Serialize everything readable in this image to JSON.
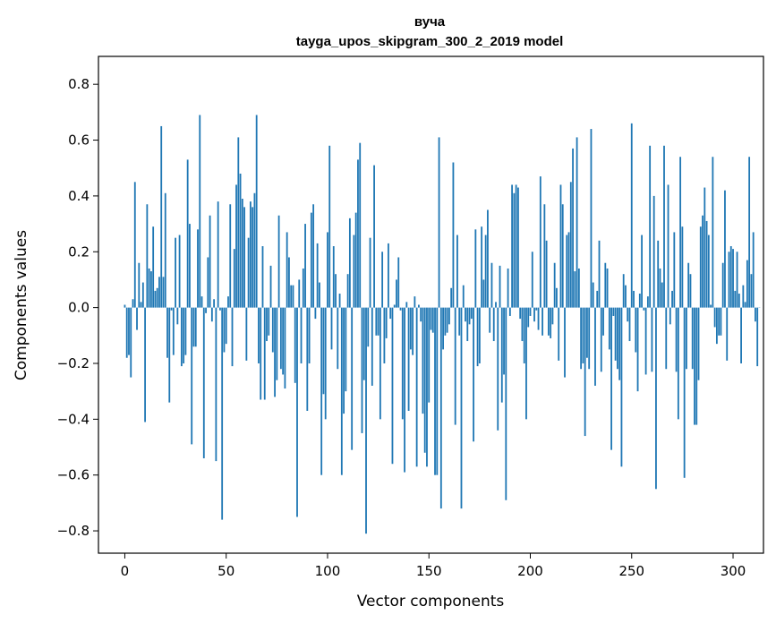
{
  "chart_data": {
    "type": "bar",
    "title": "вуча",
    "subtitle": "tayga_upos_skipgram_300_2_2019 model",
    "xlabel": "Vector components",
    "ylabel": "Components values",
    "xlim": [
      -13,
      315
    ],
    "ylim": [
      -0.88,
      0.9
    ],
    "xticks": [
      0,
      50,
      100,
      150,
      200,
      250,
      300
    ],
    "xtick_labels": [
      "0",
      "50",
      "100",
      "150",
      "200",
      "250",
      "300"
    ],
    "yticks": [
      -0.8,
      -0.6,
      -0.4,
      -0.2,
      0.0,
      0.2,
      0.4,
      0.6,
      0.8
    ],
    "ytick_labels": [
      "−0.8",
      "−0.6",
      "−0.4",
      "−0.2",
      "0.0",
      "0.2",
      "0.4",
      "0.6",
      "0.8"
    ],
    "bar_color": "#1f77b4",
    "grid": false,
    "values": [
      0.01,
      -0.18,
      -0.17,
      -0.25,
      0.03,
      0.45,
      -0.08,
      0.16,
      0.02,
      0.09,
      -0.41,
      0.37,
      0.14,
      0.13,
      0.29,
      0.06,
      0.07,
      0.11,
      0.65,
      0.11,
      0.41,
      -0.18,
      -0.34,
      -0.01,
      -0.17,
      0.25,
      -0.06,
      0.26,
      -0.21,
      -0.2,
      -0.17,
      0.53,
      0.3,
      -0.49,
      -0.14,
      -0.14,
      0.28,
      0.69,
      0.04,
      -0.54,
      -0.02,
      0.18,
      0.33,
      -0.05,
      0.03,
      -0.55,
      0.38,
      -0.01,
      -0.76,
      -0.16,
      -0.13,
      0.04,
      0.37,
      -0.21,
      0.21,
      0.44,
      0.61,
      0.48,
      0.39,
      0.36,
      -0.19,
      0.25,
      0.38,
      0.36,
      0.41,
      0.69,
      -0.2,
      -0.33,
      0.22,
      -0.33,
      -0.12,
      -0.1,
      0.15,
      -0.16,
      -0.32,
      -0.26,
      0.33,
      -0.22,
      -0.24,
      -0.29,
      0.27,
      0.18,
      0.08,
      0.08,
      -0.27,
      -0.75,
      0.1,
      -0.2,
      0.14,
      0.3,
      -0.37,
      -0.2,
      0.34,
      0.37,
      -0.04,
      0.23,
      0.09,
      -0.6,
      -0.31,
      -0.4,
      0.27,
      0.58,
      -0.15,
      0.22,
      0.12,
      -0.22,
      0.05,
      -0.6,
      -0.38,
      -0.3,
      0.12,
      0.32,
      -0.51,
      0.26,
      0.34,
      0.53,
      0.59,
      -0.45,
      -0.26,
      -0.81,
      -0.14,
      0.25,
      -0.28,
      0.51,
      -0.1,
      -0.1,
      -0.4,
      0.2,
      -0.2,
      -0.11,
      0.23,
      -0.04,
      -0.56,
      0.01,
      0.1,
      0.18,
      -0.01,
      -0.4,
      -0.59,
      0.02,
      -0.37,
      -0.15,
      -0.17,
      0.04,
      -0.57,
      0.01,
      -0.05,
      -0.38,
      -0.52,
      -0.57,
      -0.34,
      -0.08,
      -0.09,
      -0.6,
      -0.6,
      0.61,
      -0.72,
      -0.15,
      -0.1,
      -0.09,
      -0.06,
      0.07,
      0.52,
      -0.42,
      0.26,
      -0.1,
      -0.72,
      0.08,
      -0.05,
      -0.12,
      -0.06,
      -0.04,
      -0.48,
      0.28,
      -0.21,
      -0.2,
      0.29,
      0.1,
      0.26,
      0.35,
      -0.09,
      0.16,
      -0.12,
      0.02,
      -0.44,
      0.15,
      -0.34,
      -0.24,
      -0.69,
      0.14,
      -0.03,
      0.44,
      0.41,
      0.44,
      0.43,
      -0.04,
      -0.12,
      -0.2,
      -0.4,
      -0.07,
      -0.03,
      0.2,
      -0.05,
      -0.01,
      -0.08,
      0.47,
      -0.1,
      0.37,
      0.24,
      -0.1,
      -0.11,
      -0.06,
      0.16,
      0.07,
      -0.19,
      0.44,
      0.37,
      -0.25,
      0.26,
      0.27,
      0.45,
      0.57,
      0.13,
      0.61,
      0.14,
      -0.22,
      -0.2,
      -0.46,
      -0.18,
      -0.22,
      0.64,
      0.09,
      -0.28,
      0.06,
      0.24,
      -0.23,
      -0.1,
      0.16,
      0.14,
      -0.15,
      -0.51,
      -0.03,
      -0.19,
      -0.22,
      -0.26,
      -0.57,
      0.12,
      0.08,
      -0.05,
      -0.12,
      0.66,
      0.06,
      -0.16,
      -0.3,
      0.05,
      0.26,
      -0.01,
      -0.24,
      0.04,
      0.58,
      -0.23,
      0.4,
      -0.65,
      0.24,
      0.14,
      0.09,
      0.58,
      -0.22,
      0.44,
      -0.06,
      0.06,
      0.27,
      -0.23,
      -0.4,
      0.54,
      0.29,
      -0.61,
      -0.22,
      0.16,
      0.12,
      -0.22,
      -0.42,
      -0.42,
      -0.26,
      0.29,
      0.33,
      0.43,
      0.31,
      0.26,
      0.01,
      0.54,
      -0.07,
      -0.13,
      -0.1,
      -0.1,
      0.16,
      0.42,
      -0.19,
      0.2,
      0.22,
      0.21,
      0.06,
      0.2,
      0.05,
      -0.2,
      0.08,
      0.02,
      0.17,
      0.54,
      0.12,
      0.27,
      -0.05,
      -0.21,
      0.0
    ]
  }
}
